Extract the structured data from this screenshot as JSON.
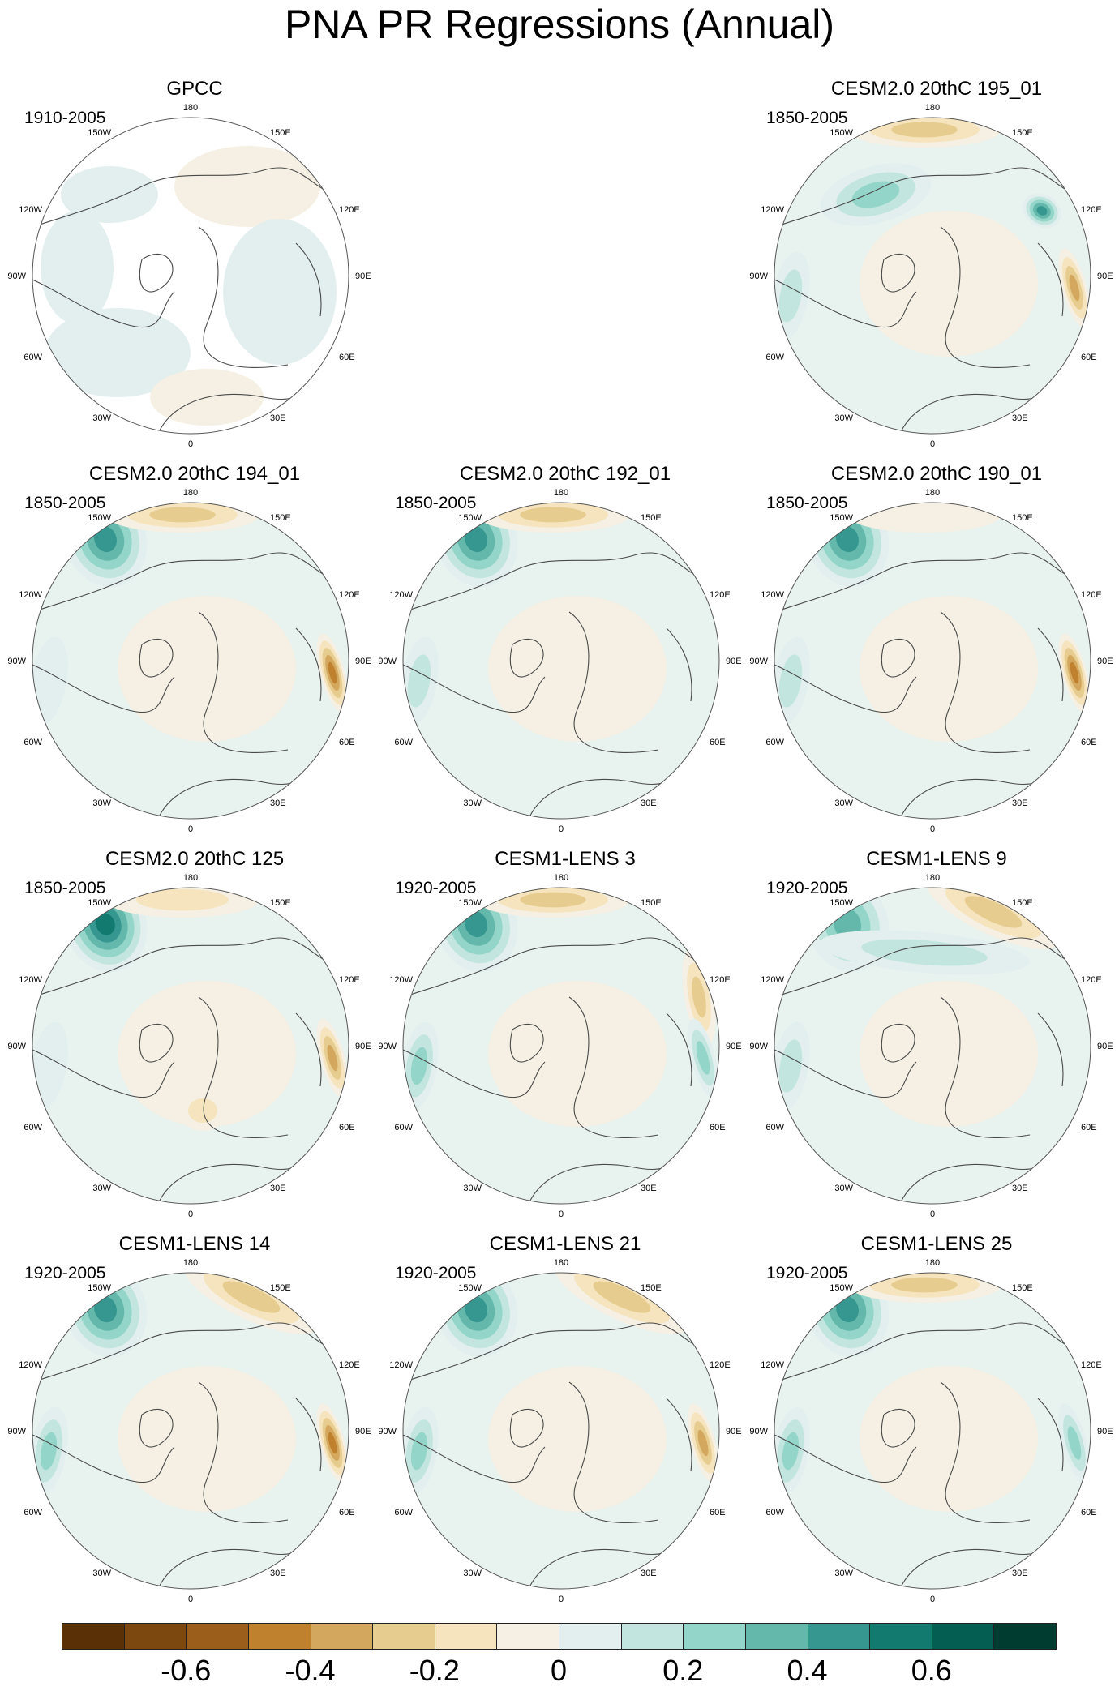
{
  "title": "PNA PR Regressions (Annual)",
  "map_labels": {
    "top": "180",
    "bottom": "0",
    "left": "90W",
    "right": "90E",
    "upper_left": "150W",
    "upper_right": "150E",
    "left_upper": "120W",
    "right_upper": "120E",
    "left_lower": "60W",
    "right_lower": "60E",
    "lower_left": "30W",
    "lower_right": "30E"
  },
  "panels": [
    {
      "id": "gpcc",
      "title": "GPCC",
      "period": "1910-2005",
      "kind": "obs",
      "anomalies": []
    },
    {
      "id": "cesm2-195",
      "title": "CESM2.0 20thC 195_01",
      "period": "1850-2005",
      "kind": "model",
      "anomalies": [
        {
          "pos": "n-arc",
          "val": -0.3
        },
        {
          "pos": "pacific-ne",
          "val": 0.25
        },
        {
          "pos": "siberia",
          "val": 0.5
        },
        {
          "pos": "india",
          "val": -0.4
        },
        {
          "pos": "atlantic-w",
          "val": 0.2
        }
      ]
    },
    {
      "id": "cesm2-194",
      "title": "CESM2.0 20thC 194_01",
      "period": "1850-2005",
      "kind": "model",
      "anomalies": [
        {
          "pos": "pacific-nw",
          "val": 0.45
        },
        {
          "pos": "n-arc",
          "val": -0.25
        },
        {
          "pos": "india",
          "val": -0.45
        },
        {
          "pos": "atlantic-w",
          "val": 0.15
        }
      ]
    },
    {
      "id": "cesm2-192",
      "title": "CESM2.0 20thC 192_01",
      "period": "1850-2005",
      "kind": "model",
      "anomalies": [
        {
          "pos": "pacific-nw",
          "val": 0.45
        },
        {
          "pos": "n-arc",
          "val": -0.3
        },
        {
          "pos": "atlantic-w",
          "val": 0.2
        }
      ]
    },
    {
      "id": "cesm2-190",
      "title": "CESM2.0 20thC 190_01",
      "period": "1850-2005",
      "kind": "model",
      "anomalies": [
        {
          "pos": "pacific-nw",
          "val": 0.45
        },
        {
          "pos": "india",
          "val": -0.45
        },
        {
          "pos": "n-arc",
          "val": -0.15
        },
        {
          "pos": "atlantic-w",
          "val": 0.2
        }
      ]
    },
    {
      "id": "cesm2-125",
      "title": "CESM2.0 20thC 125",
      "period": "1850-2005",
      "kind": "model",
      "anomalies": [
        {
          "pos": "pacific-nw",
          "val": 0.55
        },
        {
          "pos": "n-arc",
          "val": -0.2
        },
        {
          "pos": "india",
          "val": -0.4
        },
        {
          "pos": "atlantic-w",
          "val": 0.15
        },
        {
          "pos": "europe",
          "val": -0.2
        }
      ]
    },
    {
      "id": "lens-3",
      "title": "CESM1-LENS 3",
      "period": "1920-2005",
      "kind": "model",
      "anomalies": [
        {
          "pos": "pacific-nw",
          "val": 0.5
        },
        {
          "pos": "n-arc",
          "val": -0.25
        },
        {
          "pos": "ne-asia",
          "val": -0.35
        },
        {
          "pos": "atlantic-w",
          "val": 0.25
        },
        {
          "pos": "india",
          "val": 0.3
        }
      ]
    },
    {
      "id": "lens-9",
      "title": "CESM1-LENS 9",
      "period": "1920-2005",
      "kind": "model",
      "anomalies": [
        {
          "pos": "pacific-nw",
          "val": 0.4
        },
        {
          "pos": "n-arc-e",
          "val": -0.35
        },
        {
          "pos": "atlantic-w",
          "val": 0.2
        },
        {
          "pos": "pacific-band",
          "val": 0.2
        }
      ]
    },
    {
      "id": "lens-14",
      "title": "CESM1-LENS 14",
      "period": "1920-2005",
      "kind": "model",
      "anomalies": [
        {
          "pos": "pacific-nw",
          "val": 0.5
        },
        {
          "pos": "n-arc-e",
          "val": -0.35
        },
        {
          "pos": "india",
          "val": -0.5
        },
        {
          "pos": "atlantic-w",
          "val": 0.25
        }
      ]
    },
    {
      "id": "lens-21",
      "title": "CESM1-LENS 21",
      "period": "1920-2005",
      "kind": "model",
      "anomalies": [
        {
          "pos": "pacific-nw",
          "val": 0.45
        },
        {
          "pos": "n-arc-e",
          "val": -0.3
        },
        {
          "pos": "india",
          "val": -0.4
        },
        {
          "pos": "atlantic-w",
          "val": 0.25
        }
      ]
    },
    {
      "id": "lens-25",
      "title": "CESM1-LENS 25",
      "period": "1920-2005",
      "kind": "model",
      "anomalies": [
        {
          "pos": "pacific-nw",
          "val": 0.45
        },
        {
          "pos": "n-arc",
          "val": -0.3
        },
        {
          "pos": "india",
          "val": 0.35
        },
        {
          "pos": "atlantic-w",
          "val": 0.25
        }
      ]
    }
  ],
  "colorbar": {
    "colors": [
      "#5a3107",
      "#7d4710",
      "#9c5e1b",
      "#bf812d",
      "#d4a75e",
      "#e7cc8f",
      "#f5e4bd",
      "#f5f0e3",
      "#e2efee",
      "#c2e6df",
      "#94d5c9",
      "#64b8ab",
      "#35978f",
      "#127a6e",
      "#045e52",
      "#003c30"
    ],
    "tick_labels": [
      "-0.6",
      "-0.4",
      "-0.2",
      "0",
      "0.2",
      "0.4",
      "0.6"
    ],
    "tick_values": [
      -0.6,
      -0.4,
      -0.2,
      0,
      0.2,
      0.4,
      0.6
    ]
  }
}
